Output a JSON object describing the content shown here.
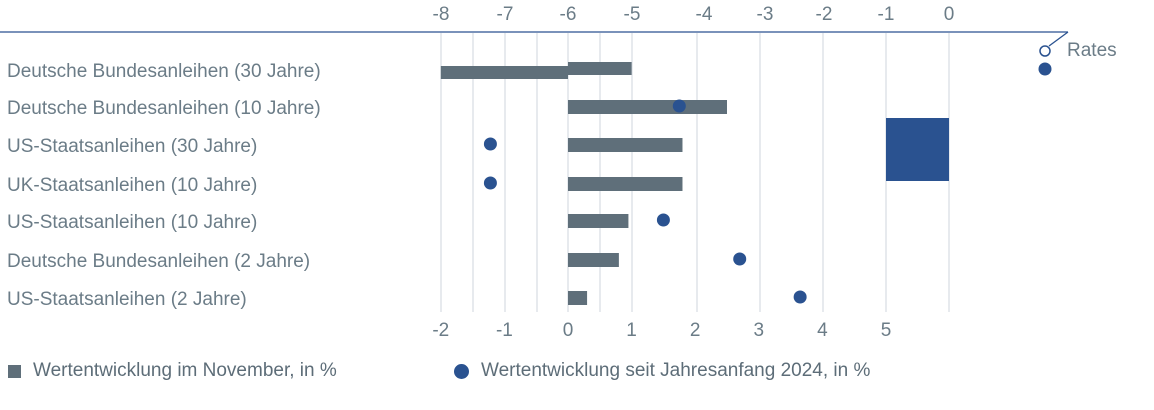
{
  "chart_data": {
    "type": "bar",
    "categories": [
      "Deutsche Bundesanleihen (30 Jahre)",
      "Deutsche Bundesanleihen (10 Jahre)",
      "US-Staatsanleihen (30 Jahre)",
      "UK-Staatsanleihen (10 Jahre)",
      "US-Staatsanleihen (10 Jahre)",
      "Deutsche Bundesanleihen (2 Jahre)",
      "US-Staatsanleihen (2 Jahre)"
    ],
    "series": [
      {
        "name": "Wertentwicklung im November, in %",
        "type": "bar",
        "values": [
          1.0,
          2.5,
          1.8,
          1.8,
          0.95,
          0.8,
          0.3
        ],
        "extra_segment_first_row": [
          -2,
          0
        ]
      },
      {
        "name": "Wertentwicklung seit Jahresanfang 2024, in %",
        "type": "dot",
        "values": [
          7.5,
          1.75,
          -1.22,
          -1.22,
          1.5,
          2.7,
          3.65
        ]
      }
    ],
    "x_bottom_ticks": [
      "-2",
      "-1",
      "0",
      "1",
      "2",
      "3",
      "4",
      "5"
    ],
    "x_bottom_range": [
      -2,
      5
    ],
    "x_top_ticks": [
      "-8",
      "-7",
      "-6",
      "-5",
      "-4",
      "-3",
      "-2",
      "-1",
      "0"
    ],
    "rates_label": "Rates",
    "rates_box": [
      -1,
      0
    ],
    "colors": {
      "bar": "#5f6f7a",
      "dot": "#2a5290",
      "axis": "#2a5290",
      "grid": "#cfd6dc"
    }
  }
}
